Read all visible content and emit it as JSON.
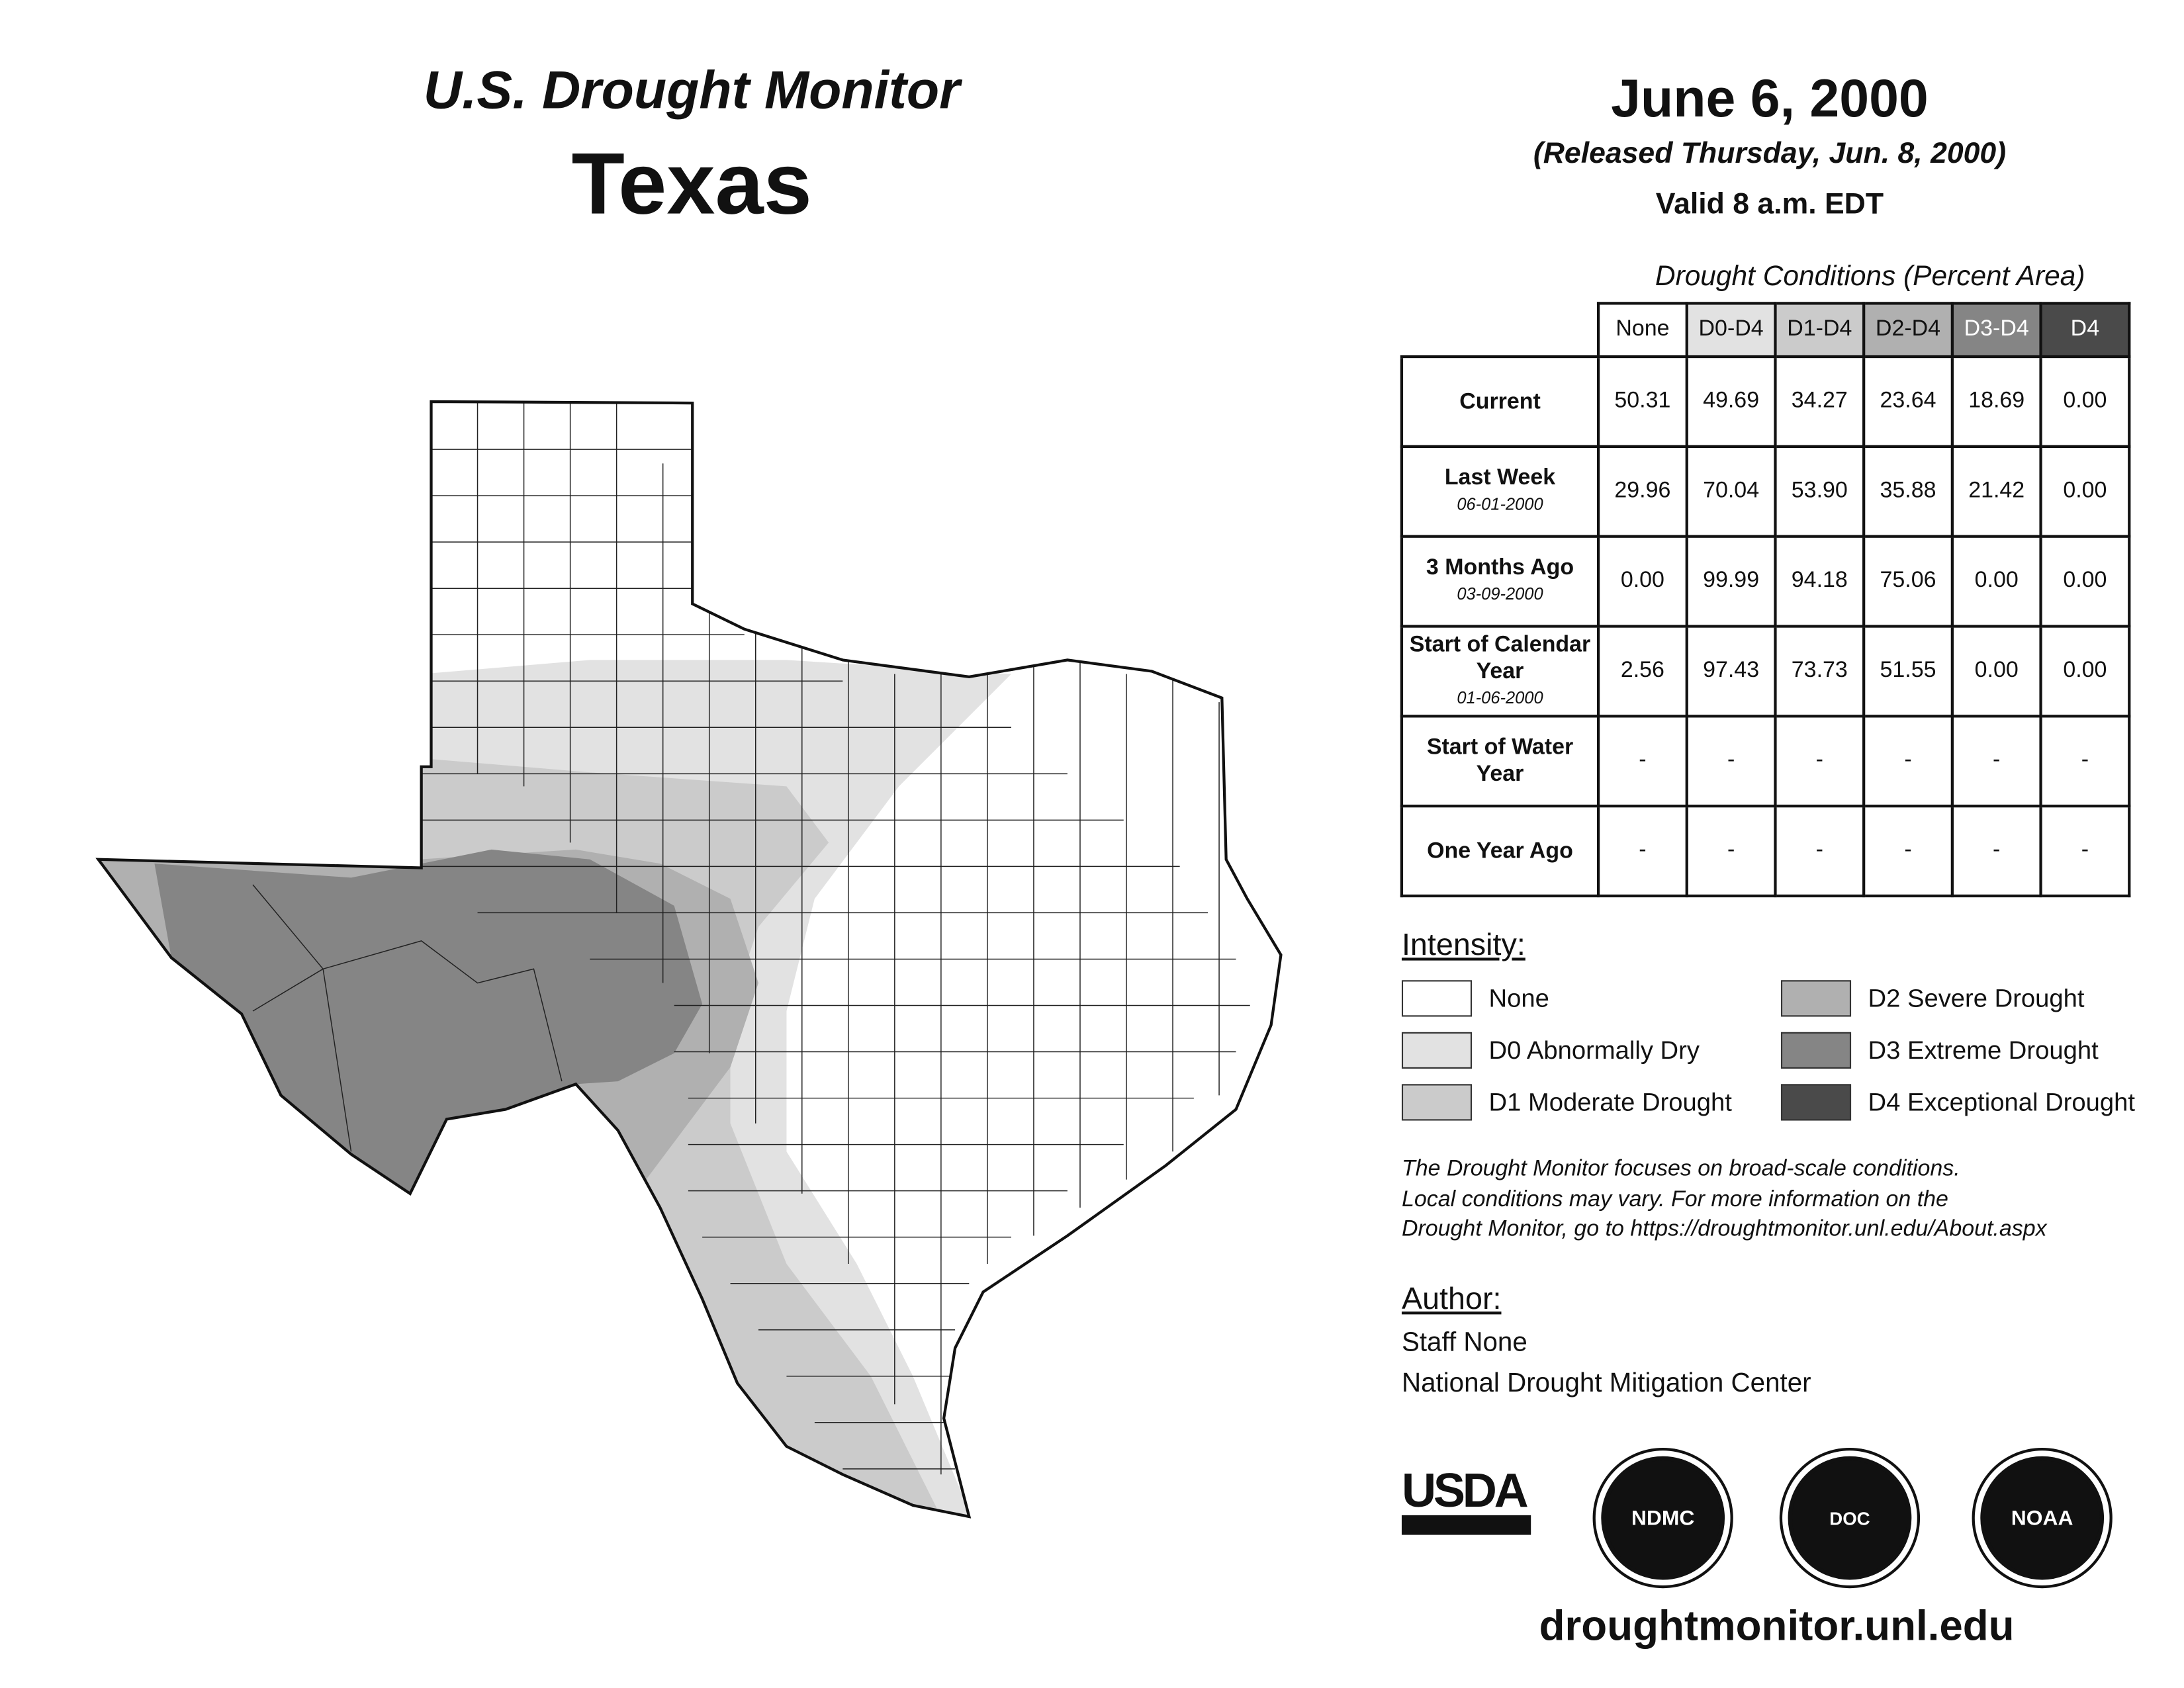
{
  "header": {
    "title": "U.S. Drought Monitor",
    "state": "Texas",
    "date": "June 6, 2000",
    "released": "(Released Thursday, Jun. 8, 2000)",
    "valid": "Valid 8 a.m. EDT"
  },
  "chart_data": {
    "type": "table",
    "title": "Drought Conditions (Percent Area)",
    "columns": [
      "None",
      "D0-D4",
      "D1-D4",
      "D2-D4",
      "D3-D4",
      "D4"
    ],
    "column_colors": [
      "#ffffff",
      "#e2e2e2",
      "#cbcbcb",
      "#b0b0b0",
      "#858585",
      "#4a4a4a"
    ],
    "rows": [
      {
        "label": "Current",
        "date": "",
        "values": [
          "50.31",
          "49.69",
          "34.27",
          "23.64",
          "18.69",
          "0.00"
        ]
      },
      {
        "label": "Last Week",
        "date": "06-01-2000",
        "values": [
          "29.96",
          "70.04",
          "53.90",
          "35.88",
          "21.42",
          "0.00"
        ]
      },
      {
        "label": "3 Months Ago",
        "date": "03-09-2000",
        "values": [
          "0.00",
          "99.99",
          "94.18",
          "75.06",
          "0.00",
          "0.00"
        ]
      },
      {
        "label": "Start of Calendar Year",
        "date": "01-06-2000",
        "values": [
          "2.56",
          "97.43",
          "73.73",
          "51.55",
          "0.00",
          "0.00"
        ]
      },
      {
        "label": "Start of Water Year",
        "date": "",
        "values": [
          "-",
          "-",
          "-",
          "-",
          "-",
          "-"
        ]
      },
      {
        "label": "One Year Ago",
        "date": "",
        "values": [
          "-",
          "-",
          "-",
          "-",
          "-",
          "-"
        ]
      }
    ]
  },
  "legend": {
    "title": "Intensity:",
    "items": [
      {
        "label": "None",
        "color": "#ffffff"
      },
      {
        "label": "D0 Abnormally Dry",
        "color": "#e2e2e2"
      },
      {
        "label": "D1 Moderate Drought",
        "color": "#cbcbcb"
      },
      {
        "label": "D2 Severe Drought",
        "color": "#b0b0b0"
      },
      {
        "label": "D3 Extreme Drought",
        "color": "#858585"
      },
      {
        "label": "D4 Exceptional Drought",
        "color": "#4a4a4a"
      }
    ]
  },
  "note": [
    "The Drought Monitor focuses on broad-scale conditions.",
    "Local conditions may vary. For more information on the",
    "Drought Monitor, go to https://droughtmonitor.unl.edu/About.aspx"
  ],
  "author": {
    "title": "Author:",
    "name": "Staff None",
    "org": "National Drought Mitigation Center"
  },
  "logos": {
    "usda": "USDA",
    "ndmc": "NDMC",
    "doc": "DOC",
    "noaa": "NOAA"
  },
  "footer": {
    "url": "droughtmonitor.unl.edu"
  }
}
